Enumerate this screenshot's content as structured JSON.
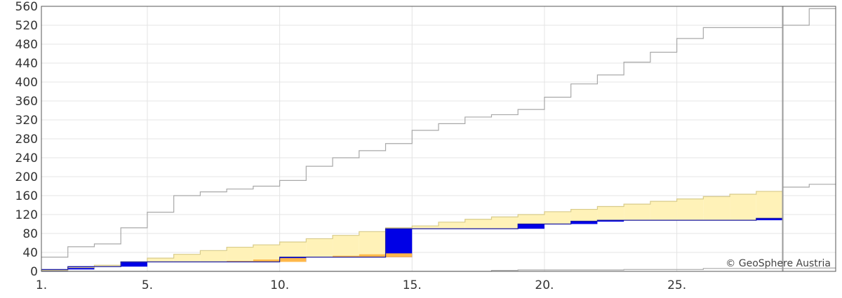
{
  "chart_data": {
    "type": "area",
    "title": "",
    "xlabel": "",
    "ylabel": "",
    "xlim": [
      1,
      31
    ],
    "ylim": [
      0,
      560
    ],
    "x_ticks": [
      "1.",
      "5.",
      "10.",
      "15.",
      "20.",
      "25."
    ],
    "y_ticks": [
      "0",
      "40",
      "80",
      "120",
      "160",
      "200",
      "240",
      "280",
      "320",
      "360",
      "400",
      "440",
      "480",
      "520",
      "560"
    ],
    "grid": true,
    "legend": "none",
    "days": [
      1,
      2,
      3,
      4,
      5,
      6,
      7,
      8,
      9,
      10,
      11,
      12,
      13,
      14,
      15,
      16,
      17,
      18,
      19,
      20,
      21,
      22,
      23,
      24,
      25,
      26,
      27,
      28,
      29,
      30
    ],
    "series": [
      {
        "values": [
          2,
          8,
          13,
          20,
          28,
          36,
          44,
          51,
          56,
          62,
          69,
          76,
          84,
          92,
          96,
          104,
          110,
          115,
          120,
          126,
          131,
          137,
          142,
          148,
          153,
          158,
          163,
          169,
          178,
          184
        ]
      },
      {
        "values": [
          4,
          10,
          10,
          20,
          20,
          20,
          20,
          20,
          20,
          30,
          30,
          30,
          30,
          90,
          90,
          90,
          90,
          90,
          100,
          100,
          106,
          108,
          108,
          108,
          108,
          108,
          108,
          112,
          112,
          112
        ]
      },
      {
        "values": [
          30,
          52,
          58,
          92,
          125,
          160,
          168,
          174,
          180,
          192,
          222,
          240,
          255,
          270,
          298,
          312,
          326,
          331,
          342,
          368,
          396,
          415,
          442,
          463,
          492,
          515,
          515,
          515,
          520,
          555
        ]
      },
      {
        "values": [
          0,
          0,
          0,
          0,
          0,
          0,
          0,
          0,
          0,
          0,
          0,
          0,
          0,
          0,
          0,
          0,
          0,
          2,
          3,
          3,
          3,
          3,
          4,
          4,
          4,
          6,
          6,
          6,
          6,
          7
        ]
      }
    ],
    "orange_bars": [
      {
        "day": 8,
        "from": 20,
        "to": 22
      },
      {
        "day": 9,
        "from": 20,
        "to": 25
      },
      {
        "day": 10,
        "from": 20,
        "to": 28
      },
      {
        "day": 12,
        "from": 30,
        "to": 33
      },
      {
        "day": 13,
        "from": 30,
        "to": 36
      },
      {
        "day": 14,
        "from": 30,
        "to": 38
      }
    ],
    "end_marker_day": 29,
    "colors": {
      "normal_fill": "#fff2b8",
      "normal_line": "#d8cb8a",
      "deficit": "#ffb84a",
      "surplus": "#0000e6",
      "measured_line": "#1a1aa0",
      "gray_line": "#a8a8a8",
      "grid": "#e4e4e4",
      "axis": "#555555",
      "marker": "#999999"
    },
    "copyright": "© GeoSphere Austria"
  }
}
